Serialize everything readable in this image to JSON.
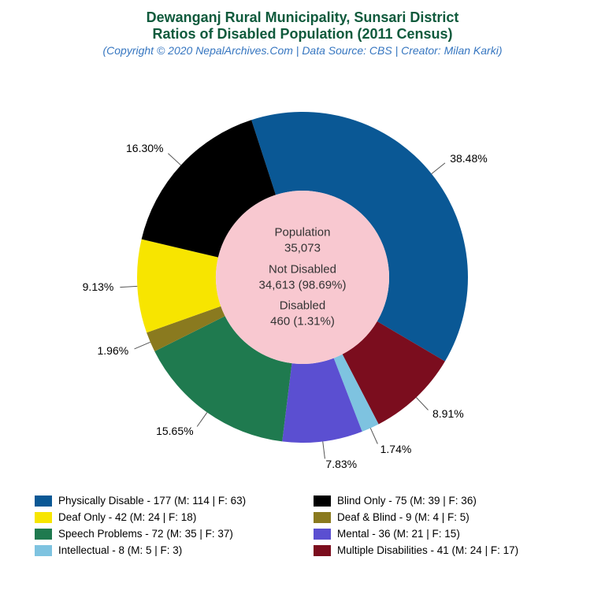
{
  "title": {
    "line1": "Dewanganj Rural Municipality, Sunsari District",
    "line2": "Ratios of Disabled Population (2011 Census)",
    "color": "#0f5a3c",
    "fontsize": 18
  },
  "subtitle": {
    "text": "(Copyright © 2020 NepalArchives.Com | Data Source: CBS | Creator: Milan Karki)",
    "color": "#3676c0",
    "fontsize": 14
  },
  "chart": {
    "type": "donut",
    "background_color": "#ffffff",
    "outer_radius": 210,
    "inner_radius": 110,
    "inner_fill": "#f8c8d0",
    "start_angle_deg": -18,
    "slices": [
      {
        "key": "physically_disable",
        "pct": 38.48,
        "color": "#0a5895",
        "label": "38.48%"
      },
      {
        "key": "multiple",
        "pct": 8.91,
        "color": "#7b0d1e",
        "label": "8.91%"
      },
      {
        "key": "intellectual",
        "pct": 1.74,
        "color": "#7ec3e0",
        "label": "1.74%"
      },
      {
        "key": "mental",
        "pct": 7.83,
        "color": "#5b4fd1",
        "label": "7.83%"
      },
      {
        "key": "speech",
        "pct": 15.65,
        "color": "#1f7a4f",
        "label": "15.65%"
      },
      {
        "key": "deaf_blind",
        "pct": 1.96,
        "color": "#8a7a1f",
        "label": "1.96%"
      },
      {
        "key": "deaf_only",
        "pct": 9.13,
        "color": "#f7e500",
        "label": "9.13%"
      },
      {
        "key": "blind_only",
        "pct": 16.3,
        "color": "#000000",
        "label": "16.30%"
      }
    ]
  },
  "center": {
    "population_label": "Population",
    "population_value": "35,073",
    "not_disabled_label": "Not Disabled",
    "not_disabled_value": "34,613 (98.69%)",
    "disabled_label": "Disabled",
    "disabled_value": "460 (1.31%)"
  },
  "legend": [
    {
      "key": "physically_disable",
      "color": "#0a5895",
      "text": "Physically Disable - 177 (M: 114 | F: 63)"
    },
    {
      "key": "blind_only",
      "color": "#000000",
      "text": "Blind Only - 75 (M: 39 | F: 36)"
    },
    {
      "key": "deaf_only",
      "color": "#f7e500",
      "text": "Deaf Only - 42 (M: 24 | F: 18)"
    },
    {
      "key": "deaf_blind",
      "color": "#8a7a1f",
      "text": "Deaf & Blind - 9 (M: 4 | F: 5)"
    },
    {
      "key": "speech",
      "color": "#1f7a4f",
      "text": "Speech Problems - 72 (M: 35 | F: 37)"
    },
    {
      "key": "mental",
      "color": "#5b4fd1",
      "text": "Mental - 36 (M: 21 | F: 15)"
    },
    {
      "key": "intellectual",
      "color": "#7ec3e0",
      "text": "Intellectual - 8 (M: 5 | F: 3)"
    },
    {
      "key": "multiple",
      "color": "#7b0d1e",
      "text": "Multiple Disabilities - 41 (M: 24 | F: 17)"
    }
  ]
}
